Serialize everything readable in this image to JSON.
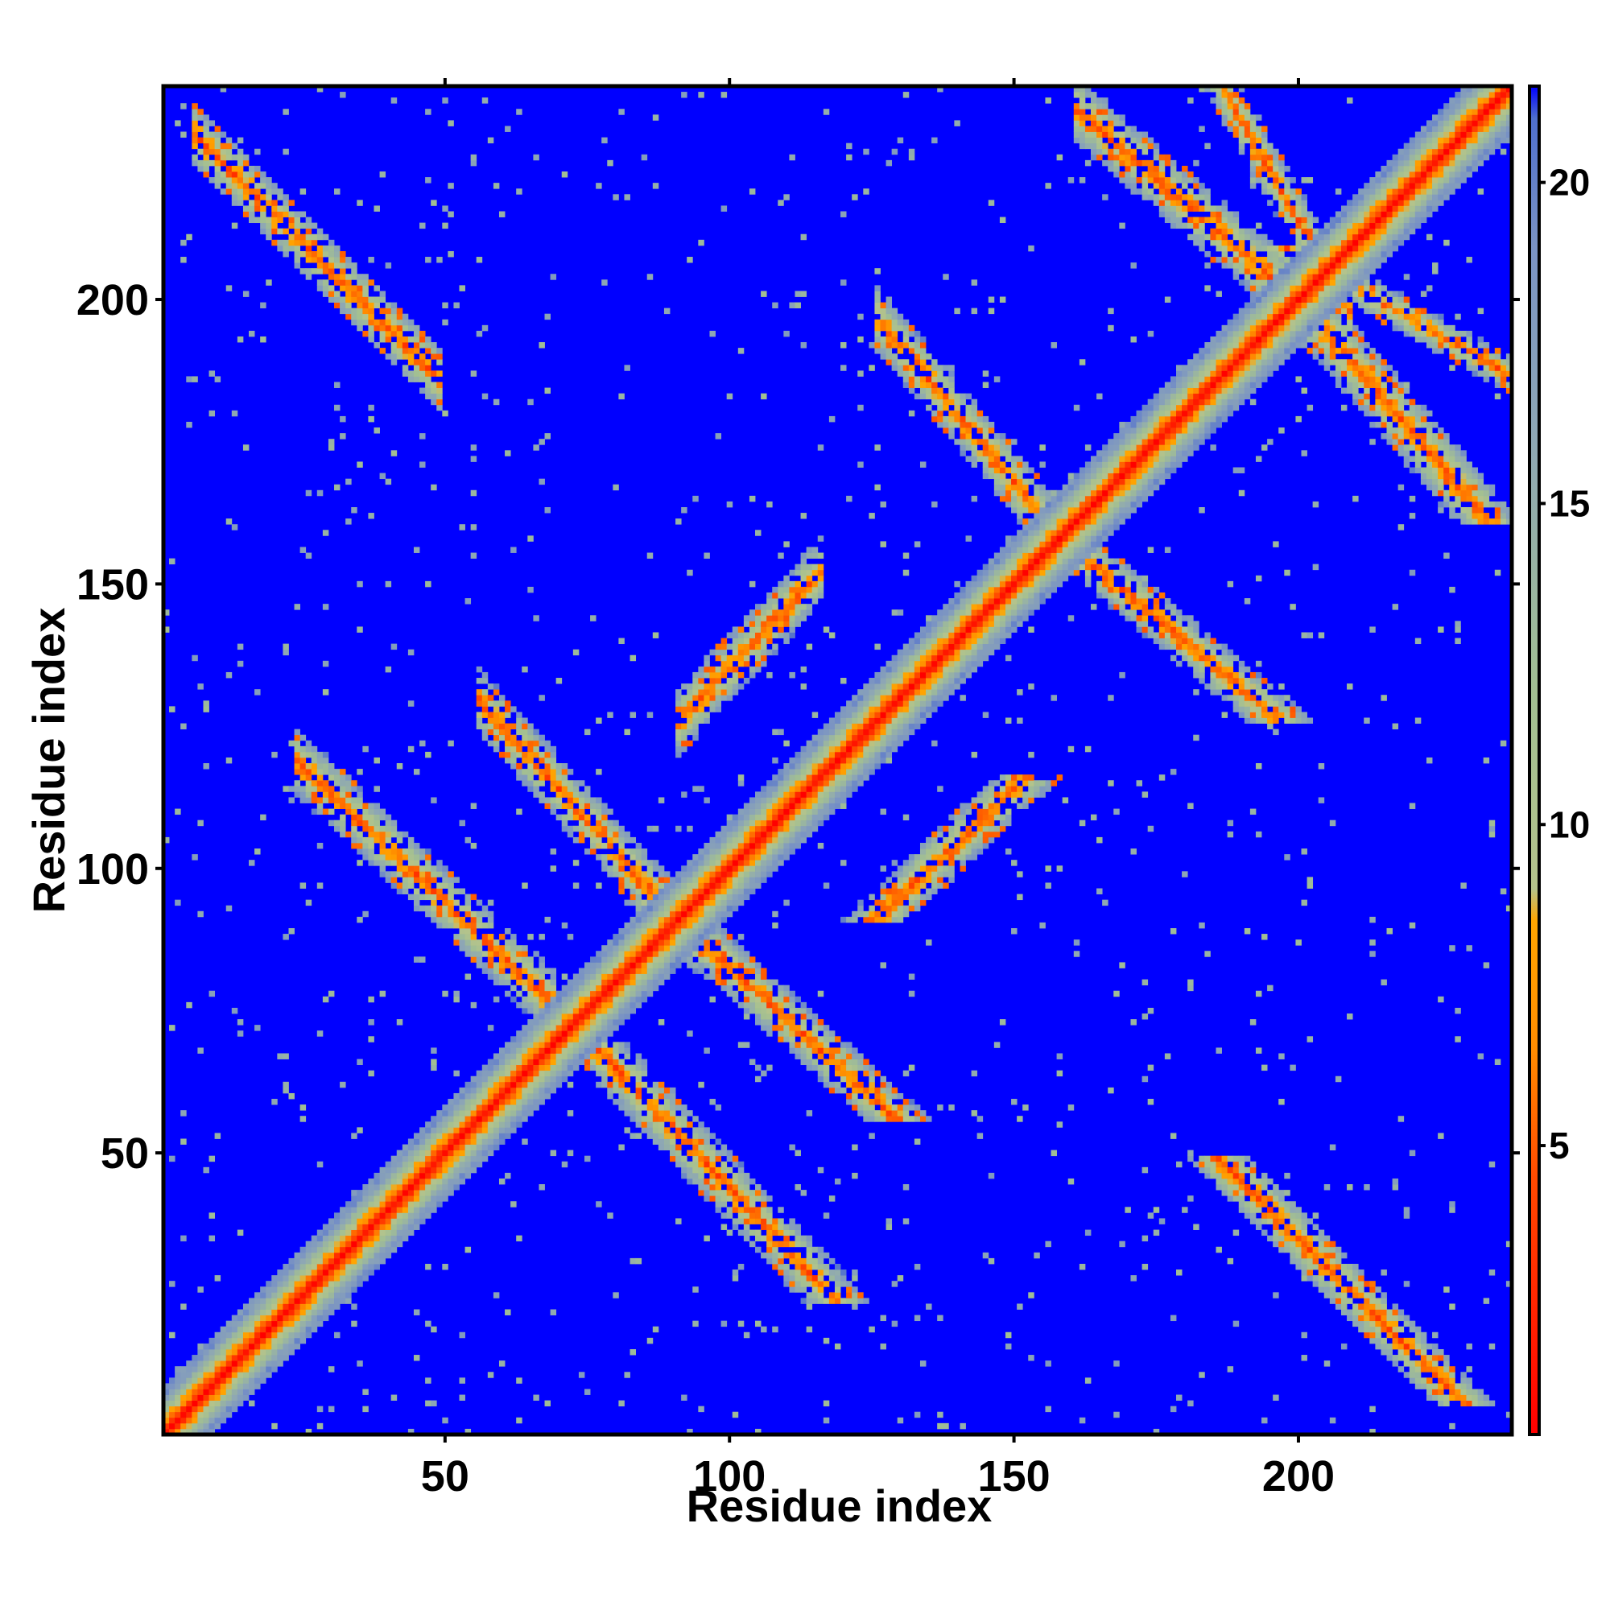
{
  "chart_data": {
    "type": "heatmap",
    "title": "",
    "xlabel": "Residue index",
    "ylabel": "Residue index",
    "xlim": [
      0.5,
      237.5
    ],
    "ylim": [
      0.5,
      237.5
    ],
    "x_ticks": [
      50,
      100,
      150,
      200
    ],
    "y_ticks": [
      50,
      100,
      150,
      200
    ],
    "x_tick_labels": [
      "50",
      "100",
      "150",
      "200"
    ],
    "y_tick_labels": [
      "50",
      "100",
      "150",
      "200"
    ],
    "grid": false,
    "n_residues": 237,
    "value_range": [
      0.5,
      21.5
    ],
    "colorbar": {
      "ticks": [
        5,
        10,
        15,
        20
      ],
      "tick_labels": [
        "5",
        "10",
        "15",
        "20"
      ],
      "range": [
        0.5,
        21.5
      ],
      "placement": "right"
    },
    "colormap": [
      {
        "value": 0.5,
        "color": "#ff0000"
      },
      {
        "value": 4.5,
        "color": "#ff4a00"
      },
      {
        "value": 6.5,
        "color": "#ff8c00"
      },
      {
        "value": 8.5,
        "color": "#ffa500"
      },
      {
        "value": 9.0,
        "color": "#b4c38c"
      },
      {
        "value": 12.0,
        "color": "#a2bf92"
      },
      {
        "value": 16.0,
        "color": "#8ea7b4"
      },
      {
        "value": 19.0,
        "color": "#7a93c4"
      },
      {
        "value": 21.0,
        "color": "#4f6fcc"
      },
      {
        "value": 21.5,
        "color": "#0000ff"
      }
    ],
    "background_value": 21.5,
    "structure": {
      "diagonal": {
        "from": 1,
        "to": 237,
        "width_residues": 12
      },
      "contact_bands": [
        {
          "a_from": 60,
          "a_to": 90,
          "b_from": 92,
          "b_to": 125,
          "orientation": "anti-parallel"
        },
        {
          "a_from": 28,
          "a_to": 65,
          "b_from": 80,
          "b_to": 115,
          "orientation": "anti-parallel"
        },
        {
          "a_from": 10,
          "a_to": 45,
          "b_from": 190,
          "b_to": 225,
          "orientation": "anti-parallel"
        },
        {
          "a_from": 95,
          "a_to": 112,
          "b_from": 130,
          "b_to": 148,
          "orientation": "parallel"
        },
        {
          "a_from": 130,
          "a_to": 155,
          "b_from": 162,
          "b_to": 192,
          "orientation": "anti-parallel"
        },
        {
          "a_from": 165,
          "a_to": 200,
          "b_from": 200,
          "b_to": 230,
          "orientation": "anti-parallel"
        },
        {
          "a_from": 188,
          "a_to": 205,
          "b_from": 205,
          "b_to": 235,
          "orientation": "anti-parallel"
        },
        {
          "a_from": 205,
          "a_to": 230,
          "b_from": 205,
          "b_to": 230,
          "orientation": "parallel"
        }
      ]
    }
  }
}
